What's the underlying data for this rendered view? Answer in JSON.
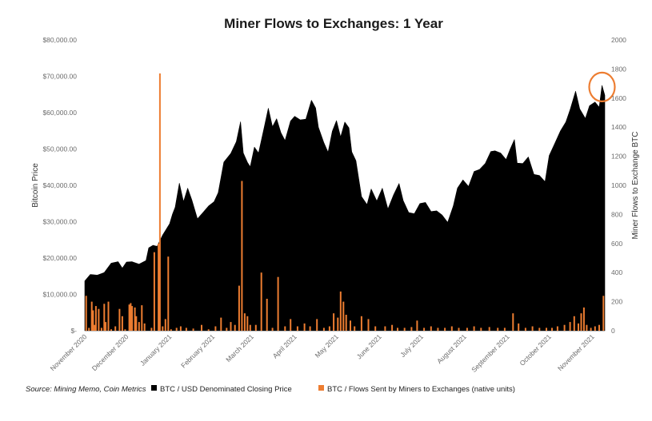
{
  "chart_data": {
    "type": "area",
    "title": "Miner Flows to Exchanges: 1 Year",
    "ylabel_left": "Bitcoin Price",
    "ylabel_right": "Miner Flows to Exchange BTC",
    "ylim_left": [
      0,
      80000
    ],
    "ylim_right": [
      0,
      2000
    ],
    "yticks_left": [
      "$-",
      "$10,000.00",
      "$20,000.00",
      "$30,000.00",
      "$40,000.00",
      "$50,000.00",
      "$60,000.00",
      "$70,000.00",
      "$80,000.00"
    ],
    "yticks_right": [
      "0",
      "200",
      "400",
      "600",
      "800",
      "1000",
      "1200",
      "1400",
      "1600",
      "1800",
      "2000"
    ],
    "x_start": "2020-11-01",
    "x_end": "2021-11-10",
    "xticks": [
      {
        "date": "2020-11-01",
        "label": "November 2020"
      },
      {
        "date": "2020-12-01",
        "label": "December 2020"
      },
      {
        "date": "2021-01-01",
        "label": "January 2021"
      },
      {
        "date": "2021-02-01",
        "label": "February 2021"
      },
      {
        "date": "2021-03-01",
        "label": "March 2021"
      },
      {
        "date": "2021-04-01",
        "label": "April 2021"
      },
      {
        "date": "2021-05-01",
        "label": "May 2021"
      },
      {
        "date": "2021-06-01",
        "label": "June 2021"
      },
      {
        "date": "2021-07-01",
        "label": "July 2021"
      },
      {
        "date": "2021-08-01",
        "label": "August 2021"
      },
      {
        "date": "2021-09-01",
        "label": "September 2021"
      },
      {
        "date": "2021-10-01",
        "label": "October 2021"
      },
      {
        "date": "2021-11-01",
        "label": "November 2021"
      }
    ],
    "series": [
      {
        "name": "BTC / USD Denominated Closing Price",
        "axis": "left",
        "style": "area",
        "color": "#000000",
        "points": [
          [
            "2020-11-01",
            13700
          ],
          [
            "2020-11-05",
            15500
          ],
          [
            "2020-11-10",
            15300
          ],
          [
            "2020-11-15",
            16000
          ],
          [
            "2020-11-20",
            18600
          ],
          [
            "2020-11-25",
            19000
          ],
          [
            "2020-11-28",
            17200
          ],
          [
            "2020-12-01",
            18900
          ],
          [
            "2020-12-05",
            19000
          ],
          [
            "2020-12-10",
            18300
          ],
          [
            "2020-12-15",
            19300
          ],
          [
            "2020-12-17",
            22800
          ],
          [
            "2020-12-20",
            23500
          ],
          [
            "2020-12-23",
            23200
          ],
          [
            "2020-12-27",
            26300
          ],
          [
            "2021-01-01",
            29400
          ],
          [
            "2021-01-03",
            32000
          ],
          [
            "2021-01-05",
            34000
          ],
          [
            "2021-01-08",
            40600
          ],
          [
            "2021-01-11",
            35500
          ],
          [
            "2021-01-14",
            39200
          ],
          [
            "2021-01-17",
            36000
          ],
          [
            "2021-01-21",
            30800
          ],
          [
            "2021-01-25",
            32500
          ],
          [
            "2021-01-29",
            34300
          ],
          [
            "2021-02-02",
            35500
          ],
          [
            "2021-02-05",
            38000
          ],
          [
            "2021-02-09",
            46400
          ],
          [
            "2021-02-14",
            48800
          ],
          [
            "2021-02-18",
            52000
          ],
          [
            "2021-02-21",
            57500
          ],
          [
            "2021-02-23",
            48900
          ],
          [
            "2021-02-26",
            46300
          ],
          [
            "2021-02-28",
            45100
          ],
          [
            "2021-03-03",
            50500
          ],
          [
            "2021-03-06",
            48900
          ],
          [
            "2021-03-10",
            55900
          ],
          [
            "2021-03-13",
            61200
          ],
          [
            "2021-03-16",
            56100
          ],
          [
            "2021-03-19",
            58300
          ],
          [
            "2021-03-22",
            54500
          ],
          [
            "2021-03-25",
            52300
          ],
          [
            "2021-03-29",
            57700
          ],
          [
            "2021-04-01",
            59000
          ],
          [
            "2021-04-05",
            58000
          ],
          [
            "2021-04-09",
            58200
          ],
          [
            "2021-04-13",
            63400
          ],
          [
            "2021-04-16",
            61300
          ],
          [
            "2021-04-18",
            56000
          ],
          [
            "2021-04-22",
            51700
          ],
          [
            "2021-04-25",
            49100
          ],
          [
            "2021-04-28",
            54900
          ],
          [
            "2021-05-01",
            57800
          ],
          [
            "2021-05-04",
            53300
          ],
          [
            "2021-05-07",
            57400
          ],
          [
            "2021-05-10",
            55800
          ],
          [
            "2021-05-12",
            49200
          ],
          [
            "2021-05-15",
            46800
          ],
          [
            "2021-05-19",
            36900
          ],
          [
            "2021-05-23",
            34700
          ],
          [
            "2021-05-26",
            39000
          ],
          [
            "2021-05-30",
            35700
          ],
          [
            "2021-06-03",
            39200
          ],
          [
            "2021-06-07",
            33500
          ],
          [
            "2021-06-11",
            37300
          ],
          [
            "2021-06-15",
            40500
          ],
          [
            "2021-06-18",
            35800
          ],
          [
            "2021-06-22",
            32500
          ],
          [
            "2021-06-26",
            32200
          ],
          [
            "2021-06-30",
            35000
          ],
          [
            "2021-07-04",
            35300
          ],
          [
            "2021-07-08",
            32800
          ],
          [
            "2021-07-12",
            33000
          ],
          [
            "2021-07-16",
            31800
          ],
          [
            "2021-07-20",
            29800
          ],
          [
            "2021-07-24",
            34300
          ],
          [
            "2021-07-27",
            39200
          ],
          [
            "2021-07-31",
            41500
          ],
          [
            "2021-08-04",
            39700
          ],
          [
            "2021-08-08",
            43800
          ],
          [
            "2021-08-12",
            44400
          ],
          [
            "2021-08-16",
            46000
          ],
          [
            "2021-08-20",
            49300
          ],
          [
            "2021-08-23",
            49500
          ],
          [
            "2021-08-27",
            48900
          ],
          [
            "2021-08-31",
            47100
          ],
          [
            "2021-09-03",
            50000
          ],
          [
            "2021-09-06",
            52600
          ],
          [
            "2021-09-08",
            46100
          ],
          [
            "2021-09-12",
            46000
          ],
          [
            "2021-09-16",
            47800
          ],
          [
            "2021-09-20",
            43000
          ],
          [
            "2021-09-24",
            42700
          ],
          [
            "2021-09-28",
            41000
          ],
          [
            "2021-10-01",
            48200
          ],
          [
            "2021-10-05",
            51500
          ],
          [
            "2021-10-09",
            54900
          ],
          [
            "2021-10-13",
            57400
          ],
          [
            "2021-10-16",
            60800
          ],
          [
            "2021-10-20",
            65900
          ],
          [
            "2021-10-23",
            61000
          ],
          [
            "2021-10-27",
            58400
          ],
          [
            "2021-10-30",
            61900
          ],
          [
            "2021-11-03",
            62900
          ],
          [
            "2021-11-06",
            61500
          ],
          [
            "2021-11-08",
            67500
          ],
          [
            "2021-11-10",
            64800
          ]
        ]
      },
      {
        "name": "BTC / Flows Sent by Miners to Exchanges (native units)",
        "axis": "right",
        "style": "column",
        "color": "#ed7d31",
        "points": [
          [
            "2020-11-02",
            240
          ],
          [
            "2020-11-04",
            20
          ],
          [
            "2020-11-06",
            200
          ],
          [
            "2020-11-07",
            140
          ],
          [
            "2020-11-08",
            40
          ],
          [
            "2020-11-09",
            170
          ],
          [
            "2020-11-11",
            150
          ],
          [
            "2020-11-13",
            20
          ],
          [
            "2020-11-15",
            185
          ],
          [
            "2020-11-16",
            60
          ],
          [
            "2020-11-18",
            200
          ],
          [
            "2020-11-20",
            10
          ],
          [
            "2020-11-23",
            30
          ],
          [
            "2020-11-26",
            150
          ],
          [
            "2020-11-28",
            100
          ],
          [
            "2020-11-30",
            10
          ],
          [
            "2020-12-03",
            180
          ],
          [
            "2020-12-04",
            190
          ],
          [
            "2020-12-05",
            170
          ],
          [
            "2020-12-07",
            160
          ],
          [
            "2020-12-08",
            100
          ],
          [
            "2020-12-10",
            60
          ],
          [
            "2020-12-12",
            175
          ],
          [
            "2020-12-14",
            50
          ],
          [
            "2020-12-19",
            20
          ],
          [
            "2020-12-21",
            540
          ],
          [
            "2020-12-24",
            600
          ],
          [
            "2020-12-25",
            1770
          ],
          [
            "2020-12-27",
            30
          ],
          [
            "2020-12-29",
            80
          ],
          [
            "2020-12-31",
            510
          ],
          [
            "2021-01-02",
            10
          ],
          [
            "2021-01-06",
            20
          ],
          [
            "2021-01-09",
            30
          ],
          [
            "2021-01-13",
            20
          ],
          [
            "2021-01-18",
            15
          ],
          [
            "2021-01-24",
            40
          ],
          [
            "2021-01-29",
            10
          ],
          [
            "2021-02-03",
            30
          ],
          [
            "2021-02-07",
            90
          ],
          [
            "2021-02-11",
            20
          ],
          [
            "2021-02-14",
            60
          ],
          [
            "2021-02-17",
            40
          ],
          [
            "2021-02-20",
            310
          ],
          [
            "2021-02-22",
            1030
          ],
          [
            "2021-02-24",
            120
          ],
          [
            "2021-02-26",
            100
          ],
          [
            "2021-02-28",
            40
          ],
          [
            "2021-03-04",
            40
          ],
          [
            "2021-03-08",
            400
          ],
          [
            "2021-03-12",
            220
          ],
          [
            "2021-03-16",
            20
          ],
          [
            "2021-03-20",
            370
          ],
          [
            "2021-03-25",
            30
          ],
          [
            "2021-03-29",
            80
          ],
          [
            "2021-04-03",
            30
          ],
          [
            "2021-04-08",
            50
          ],
          [
            "2021-04-12",
            30
          ],
          [
            "2021-04-17",
            80
          ],
          [
            "2021-04-22",
            20
          ],
          [
            "2021-04-26",
            30
          ],
          [
            "2021-04-29",
            120
          ],
          [
            "2021-05-02",
            90
          ],
          [
            "2021-05-04",
            270
          ],
          [
            "2021-05-06",
            200
          ],
          [
            "2021-05-08",
            110
          ],
          [
            "2021-05-11",
            70
          ],
          [
            "2021-05-14",
            30
          ],
          [
            "2021-05-19",
            100
          ],
          [
            "2021-05-24",
            80
          ],
          [
            "2021-05-29",
            30
          ],
          [
            "2021-06-05",
            30
          ],
          [
            "2021-06-10",
            40
          ],
          [
            "2021-06-14",
            20
          ],
          [
            "2021-06-19",
            20
          ],
          [
            "2021-06-24",
            25
          ],
          [
            "2021-06-28",
            70
          ],
          [
            "2021-07-03",
            20
          ],
          [
            "2021-07-08",
            30
          ],
          [
            "2021-07-13",
            20
          ],
          [
            "2021-07-18",
            20
          ],
          [
            "2021-07-23",
            30
          ],
          [
            "2021-07-28",
            20
          ],
          [
            "2021-08-03",
            20
          ],
          [
            "2021-08-08",
            30
          ],
          [
            "2021-08-13",
            20
          ],
          [
            "2021-08-19",
            25
          ],
          [
            "2021-08-25",
            20
          ],
          [
            "2021-08-30",
            20
          ],
          [
            "2021-09-05",
            120
          ],
          [
            "2021-09-09",
            50
          ],
          [
            "2021-09-14",
            20
          ],
          [
            "2021-09-19",
            30
          ],
          [
            "2021-09-24",
            20
          ],
          [
            "2021-09-29",
            20
          ],
          [
            "2021-10-03",
            20
          ],
          [
            "2021-10-07",
            30
          ],
          [
            "2021-10-12",
            40
          ],
          [
            "2021-10-16",
            60
          ],
          [
            "2021-10-19",
            100
          ],
          [
            "2021-10-22",
            50
          ],
          [
            "2021-10-24",
            120
          ],
          [
            "2021-10-26",
            160
          ],
          [
            "2021-10-28",
            40
          ],
          [
            "2021-10-31",
            20
          ],
          [
            "2021-11-03",
            30
          ],
          [
            "2021-11-06",
            40
          ],
          [
            "2021-11-09",
            240
          ]
        ]
      }
    ],
    "annotations": [
      {
        "type": "circle",
        "color": "#ed7d31",
        "target_date": "2021-11-08",
        "target_value": 67500,
        "axis": "left"
      }
    ],
    "source": "Source: Mining Memo, Coin Metrics",
    "legend_position": "bottom",
    "grid": false
  }
}
